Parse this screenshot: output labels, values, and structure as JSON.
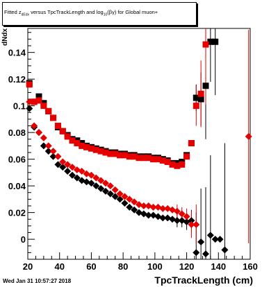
{
  "title_prefix": "Fitted z",
  "title_sub": "dEdx",
  "title_mid": " versus TpcTrackLength and log",
  "title_sub2": "10",
  "title_suffix": "(βγ) for Global muon+",
  "ylabel": "dNdx",
  "xlabel": "TpcTrackLength (cm)",
  "datestamp": "Wed Jan 31 10:57:27 2018",
  "colors": {
    "black": "#000000",
    "red": "#e60000",
    "axis": "#000000"
  },
  "chart_data": {
    "type": "scatter",
    "xlabel": "TpcTrackLength (cm)",
    "ylabel": "dNdx",
    "xlim": [
      20,
      160
    ],
    "ylim": [
      -0.015,
      0.158
    ],
    "x_ticks": [
      20,
      40,
      60,
      80,
      100,
      120,
      140,
      160
    ],
    "y_ticks": [
      0,
      0.02,
      0.04,
      0.06,
      0.08,
      0.1,
      0.12,
      0.14
    ],
    "y_tick_labels": [
      "0",
      "0.02",
      "0.04",
      "0.06",
      "0.08",
      "0.1",
      "0.12",
      "0.14"
    ],
    "series": [
      {
        "color": "black",
        "marker": "square",
        "x": [
          21,
          24,
          27,
          30,
          33,
          36,
          39,
          42,
          45,
          48,
          51,
          54,
          57,
          60,
          63,
          66,
          69,
          72,
          75,
          78,
          81,
          84,
          87,
          90,
          93,
          96,
          99,
          102,
          105,
          108,
          111,
          114,
          117,
          120,
          123,
          126,
          129,
          132,
          135,
          138
        ],
        "y": [
          0.117,
          0.103,
          0.107,
          0.102,
          0.096,
          0.091,
          0.084,
          0.081,
          0.078,
          0.075,
          0.074,
          0.072,
          0.07,
          0.069,
          0.068,
          0.067,
          0.066,
          0.065,
          0.065,
          0.064,
          0.064,
          0.063,
          0.063,
          0.062,
          0.062,
          0.062,
          0.061,
          0.061,
          0.06,
          0.059,
          0.057,
          0.057,
          0.058,
          0.063,
          0.072,
          0.106,
          0.105,
          0.115,
          0.148,
          0.148
        ],
        "err": [
          0,
          0,
          0,
          0,
          0,
          0,
          0,
          0,
          0,
          0,
          0,
          0,
          0,
          0,
          0,
          0,
          0,
          0,
          0,
          0,
          0,
          0,
          0,
          0,
          0,
          0,
          0,
          0,
          0,
          0,
          0,
          0,
          0,
          0,
          0,
          0.01,
          0.02,
          0.04,
          0.03,
          0.04
        ]
      },
      {
        "color": "red",
        "marker": "square",
        "x": [
          21,
          24,
          27,
          30,
          33,
          36,
          39,
          42,
          45,
          48,
          51,
          54,
          57,
          60,
          63,
          66,
          69,
          72,
          75,
          78,
          81,
          84,
          87,
          90,
          93,
          96,
          99,
          102,
          105,
          108,
          111,
          114,
          117,
          120,
          123,
          126,
          129,
          132
        ],
        "y": [
          0.116,
          0.103,
          0.104,
          0.1,
          0.096,
          0.091,
          0.085,
          0.081,
          0.077,
          0.074,
          0.072,
          0.07,
          0.069,
          0.068,
          0.067,
          0.066,
          0.065,
          0.064,
          0.064,
          0.063,
          0.063,
          0.062,
          0.062,
          0.061,
          0.061,
          0.061,
          0.06,
          0.06,
          0.059,
          0.058,
          0.056,
          0.055,
          0.056,
          0.062,
          0.072,
          0.1,
          0.109,
          0.146
        ],
        "err": [
          0,
          0,
          0,
          0,
          0,
          0,
          0,
          0,
          0,
          0,
          0,
          0,
          0,
          0,
          0,
          0,
          0,
          0,
          0,
          0,
          0,
          0,
          0,
          0,
          0,
          0,
          0,
          0,
          0,
          0,
          0,
          0,
          0,
          0,
          0,
          0.015,
          0.025,
          0.045
        ]
      },
      {
        "color": "black",
        "marker": "diamond",
        "x": [
          21,
          24,
          27,
          30,
          33,
          36,
          39,
          42,
          45,
          48,
          51,
          54,
          57,
          60,
          63,
          66,
          69,
          72,
          75,
          78,
          81,
          84,
          87,
          90,
          93,
          96,
          99,
          102,
          105,
          108,
          111,
          114,
          117,
          120,
          123,
          126,
          129,
          132,
          135,
          138,
          141,
          144
        ],
        "y": [
          0.098,
          0.084,
          0.08,
          0.07,
          0.066,
          0.062,
          0.056,
          0.054,
          0.051,
          0.048,
          0.046,
          0.044,
          0.043,
          0.042,
          0.04,
          0.038,
          0.036,
          0.034,
          0.032,
          0.03,
          0.027,
          0.024,
          0.022,
          0.02,
          0.019,
          0.018,
          0.018,
          0.017,
          0.016,
          0.016,
          0.015,
          0.014,
          0.014,
          0.013,
          0.014,
          -0.01,
          -0.002,
          -0.011,
          0.003,
          0.0,
          0.0,
          -0.008
        ],
        "err": [
          0,
          0,
          0,
          0,
          0,
          0,
          0,
          0,
          0,
          0,
          0,
          0,
          0,
          0,
          0,
          0,
          0,
          0,
          0,
          0,
          0,
          0,
          0,
          0,
          0,
          0,
          0,
          0,
          0,
          0,
          0,
          0.005,
          0.005,
          0.006,
          0.008,
          0.03,
          0.04,
          0.05,
          0.06,
          0,
          0,
          0.08
        ]
      },
      {
        "color": "red",
        "marker": "diamond",
        "x": [
          21,
          24,
          27,
          30,
          33,
          36,
          39,
          42,
          45,
          48,
          51,
          54,
          57,
          60,
          63,
          66,
          69,
          72,
          75,
          78,
          81,
          84,
          87,
          90,
          93,
          96,
          99,
          102,
          105,
          108,
          111,
          114,
          117,
          120,
          123,
          126,
          159
        ],
        "y": [
          0.103,
          0.085,
          0.08,
          0.076,
          0.07,
          0.066,
          0.062,
          0.058,
          0.056,
          0.054,
          0.052,
          0.051,
          0.049,
          0.048,
          0.046,
          0.044,
          0.042,
          0.04,
          0.037,
          0.034,
          0.032,
          0.03,
          0.028,
          0.026,
          0.025,
          0.025,
          0.024,
          0.024,
          0.023,
          0.023,
          0.022,
          0.021,
          0.019,
          0.017,
          0.011,
          0.011,
          0.077
        ],
        "err": [
          0,
          0,
          0,
          0,
          0,
          0,
          0,
          0,
          0,
          0,
          0,
          0,
          0,
          0,
          0,
          0,
          0,
          0,
          0,
          0,
          0,
          0,
          0,
          0,
          0,
          0,
          0,
          0,
          0,
          0,
          0,
          0.005,
          0.005,
          0.006,
          0.01,
          0.015,
          0.08
        ]
      }
    ]
  }
}
